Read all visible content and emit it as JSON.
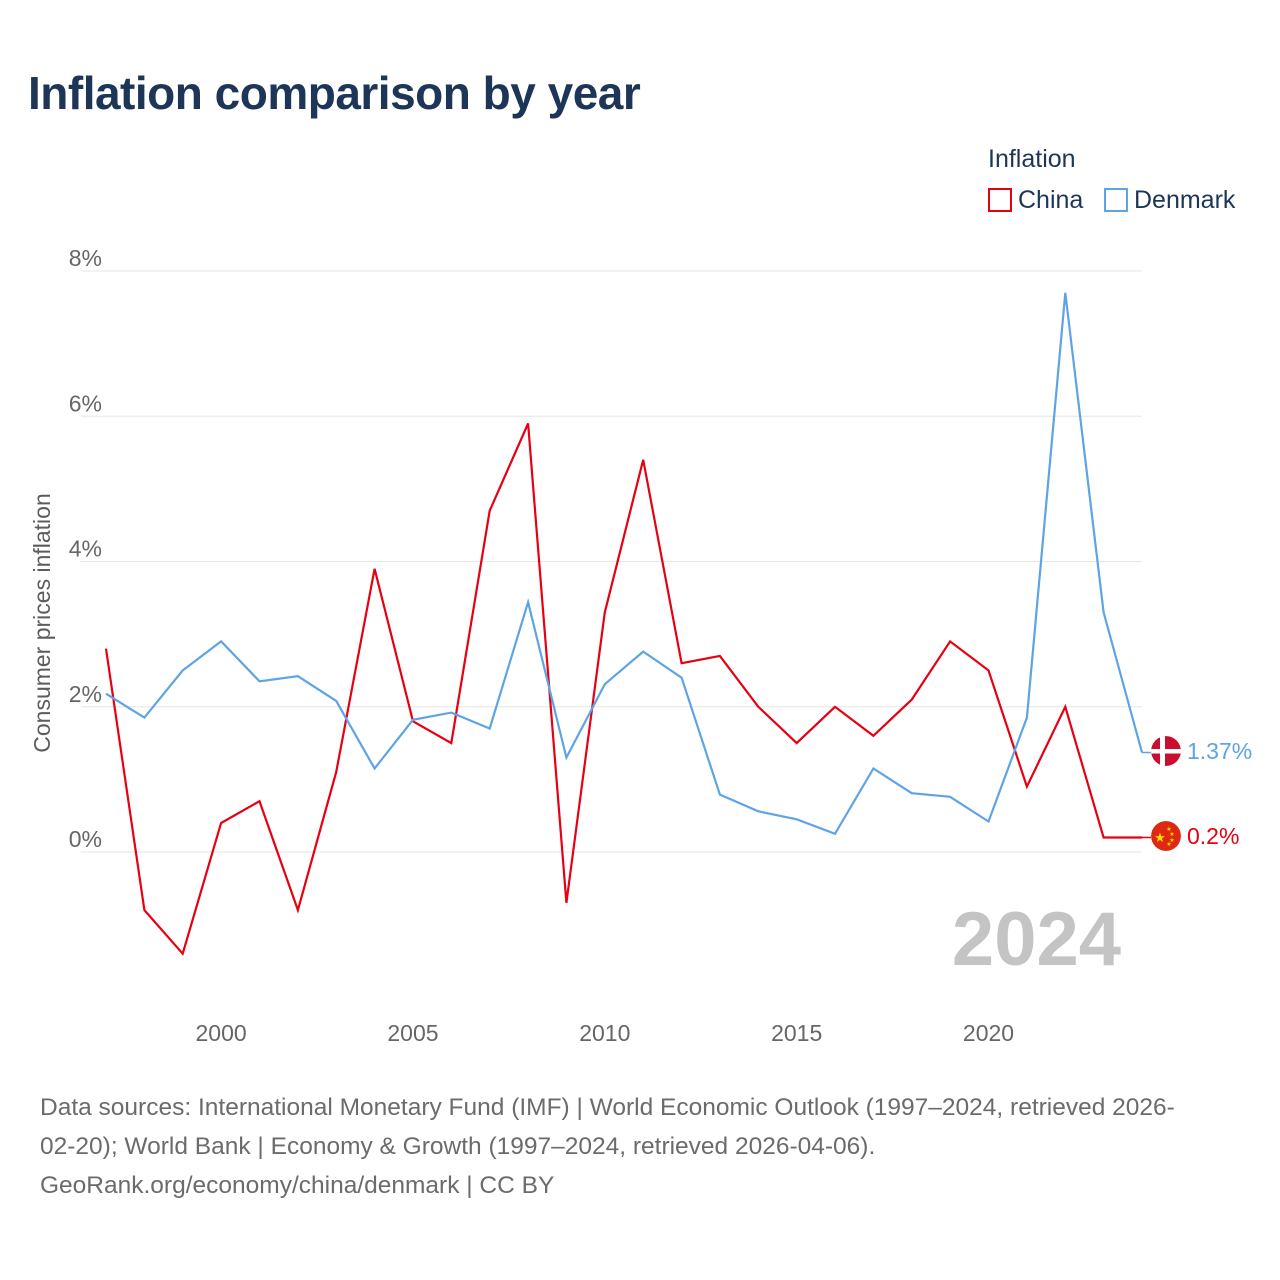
{
  "title": "Inflation comparison by year",
  "legend": {
    "title": "Inflation",
    "items": [
      {
        "label": "China",
        "color": "#e60012"
      },
      {
        "label": "Denmark",
        "color": "#5ea4e4"
      }
    ]
  },
  "chart_data": {
    "type": "line",
    "title": "Inflation comparison by year",
    "xlabel": "",
    "ylabel": "Consumer prices inflation",
    "x": [
      1997,
      1998,
      1999,
      2000,
      2001,
      2002,
      2003,
      2004,
      2005,
      2006,
      2007,
      2008,
      2009,
      2010,
      2011,
      2012,
      2013,
      2014,
      2015,
      2016,
      2017,
      2018,
      2019,
      2020,
      2021,
      2022,
      2023,
      2024
    ],
    "series": [
      {
        "name": "China",
        "color": "#e60012",
        "values": [
          2.8,
          -0.8,
          -1.4,
          0.4,
          0.7,
          -0.8,
          1.1,
          3.9,
          1.8,
          1.5,
          4.7,
          5.9,
          -0.7,
          3.3,
          5.4,
          2.6,
          2.7,
          2.0,
          1.5,
          2.0,
          1.6,
          2.1,
          2.9,
          2.5,
          0.9,
          2.0,
          0.2,
          0.2
        ],
        "end_label": "0.2%"
      },
      {
        "name": "Denmark",
        "color": "#5ea4e4",
        "values": [
          2.18,
          1.85,
          2.5,
          2.9,
          2.35,
          2.42,
          2.08,
          1.15,
          1.82,
          1.92,
          1.7,
          3.44,
          1.3,
          2.31,
          2.76,
          2.4,
          0.79,
          0.56,
          0.45,
          0.25,
          1.15,
          0.81,
          0.76,
          0.42,
          1.85,
          7.7,
          3.3,
          1.37
        ],
        "end_label": "1.37%"
      }
    ],
    "ylim": [
      -2,
      8
    ],
    "xlim": [
      1997,
      2024
    ],
    "y_ticks": [
      0,
      2,
      4,
      6,
      8
    ],
    "y_tick_labels": [
      "0%",
      "2%",
      "4%",
      "6%",
      "8%"
    ],
    "x_ticks": [
      2000,
      2005,
      2010,
      2015,
      2020
    ],
    "x_tick_labels": [
      "2000",
      "2005",
      "2010",
      "2015",
      "2020"
    ],
    "grid": true,
    "year_watermark": "2024",
    "legend_position": "top-right"
  },
  "sources": {
    "line1": "Data sources: International Monetary Fund (IMF) | World Economic Outlook (1997–2024, retrieved 2026-",
    "line2": "02-20); World Bank | Economy & Growth (1997–2024, retrieved 2026-04-06).",
    "line3": "GeoRank.org/economy/china/denmark | CC BY"
  }
}
